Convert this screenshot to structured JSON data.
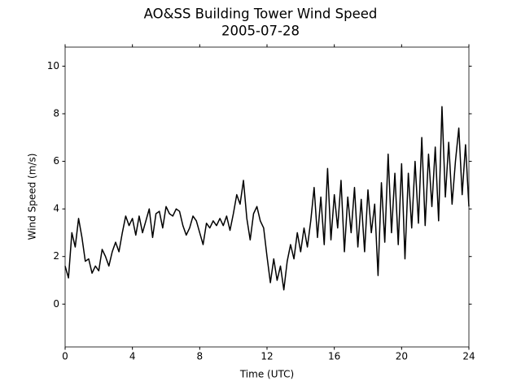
{
  "chart_data": {
    "type": "line",
    "title": "AO&SS Building Tower Wind Speed",
    "subtitle": "2005-07-28",
    "xlabel": "Time (UTC)",
    "ylabel": "Wind Speed (m/s)",
    "xlim": [
      0,
      24
    ],
    "xticks": [
      0,
      4,
      8,
      12,
      16,
      20,
      24
    ],
    "ylim": [
      -1.8,
      10.8
    ],
    "yticks": [
      0,
      2,
      4,
      6,
      8,
      10
    ],
    "x": [
      0,
      0.2,
      0.4,
      0.6,
      0.8,
      1,
      1.2,
      1.4,
      1.6,
      1.8,
      2,
      2.2,
      2.4,
      2.6,
      2.8,
      3,
      3.2,
      3.4,
      3.6,
      3.8,
      4,
      4.2,
      4.4,
      4.6,
      4.8,
      5,
      5.2,
      5.4,
      5.6,
      5.8,
      6,
      6.2,
      6.4,
      6.6,
      6.8,
      7,
      7.2,
      7.4,
      7.6,
      7.8,
      8,
      8.2,
      8.4,
      8.6,
      8.8,
      9,
      9.2,
      9.4,
      9.6,
      9.8,
      10,
      10.2,
      10.4,
      10.6,
      10.8,
      11,
      11.2,
      11.4,
      11.6,
      11.8,
      12,
      12.2,
      12.4,
      12.6,
      12.8,
      13,
      13.2,
      13.4,
      13.6,
      13.8,
      14,
      14.2,
      14.4,
      14.6,
      14.8,
      15,
      15.2,
      15.4,
      15.6,
      15.8,
      16,
      16.2,
      16.4,
      16.6,
      16.8,
      17,
      17.2,
      17.4,
      17.6,
      17.8,
      18,
      18.2,
      18.4,
      18.6,
      18.8,
      19,
      19.2,
      19.4,
      19.6,
      19.8,
      20,
      20.2,
      20.4,
      20.6,
      20.8,
      21,
      21.2,
      21.4,
      21.6,
      21.8,
      22,
      22.2,
      22.4,
      22.6,
      22.8,
      23,
      23.2,
      23.4,
      23.6,
      23.8,
      24
    ],
    "series": [
      {
        "name": "Wind Speed",
        "color": "#000000",
        "values": [
          1.6,
          1.1,
          3.0,
          2.4,
          3.6,
          2.8,
          1.8,
          1.9,
          1.3,
          1.6,
          1.4,
          2.3,
          2.0,
          1.6,
          2.2,
          2.6,
          2.2,
          3.0,
          3.7,
          3.3,
          3.6,
          2.9,
          3.7,
          3.0,
          3.5,
          4.0,
          2.8,
          3.8,
          3.9,
          3.2,
          4.1,
          3.8,
          3.7,
          4.0,
          3.9,
          3.3,
          2.9,
          3.2,
          3.7,
          3.5,
          3.0,
          2.5,
          3.4,
          3.2,
          3.5,
          3.3,
          3.6,
          3.3,
          3.7,
          3.1,
          3.8,
          4.6,
          4.2,
          5.2,
          3.6,
          2.7,
          3.8,
          4.1,
          3.5,
          3.2,
          2.0,
          0.9,
          1.9,
          1.0,
          1.6,
          0.6,
          1.8,
          2.5,
          1.9,
          3.0,
          2.2,
          3.2,
          2.4,
          3.5,
          4.9,
          2.8,
          4.5,
          2.5,
          5.7,
          2.7,
          4.6,
          3.2,
          5.2,
          2.2,
          4.5,
          3.0,
          4.9,
          2.4,
          4.4,
          2.2,
          4.8,
          3.0,
          4.2,
          1.2,
          5.1,
          2.6,
          6.3,
          3.0,
          5.5,
          2.5,
          5.9,
          1.9,
          5.5,
          3.2,
          6.0,
          3.4,
          7.0,
          3.3,
          6.3,
          4.1,
          6.6,
          3.5,
          8.3,
          4.5,
          6.8,
          4.2,
          6.0,
          7.4,
          4.6,
          6.7,
          4.1
        ]
      }
    ]
  }
}
